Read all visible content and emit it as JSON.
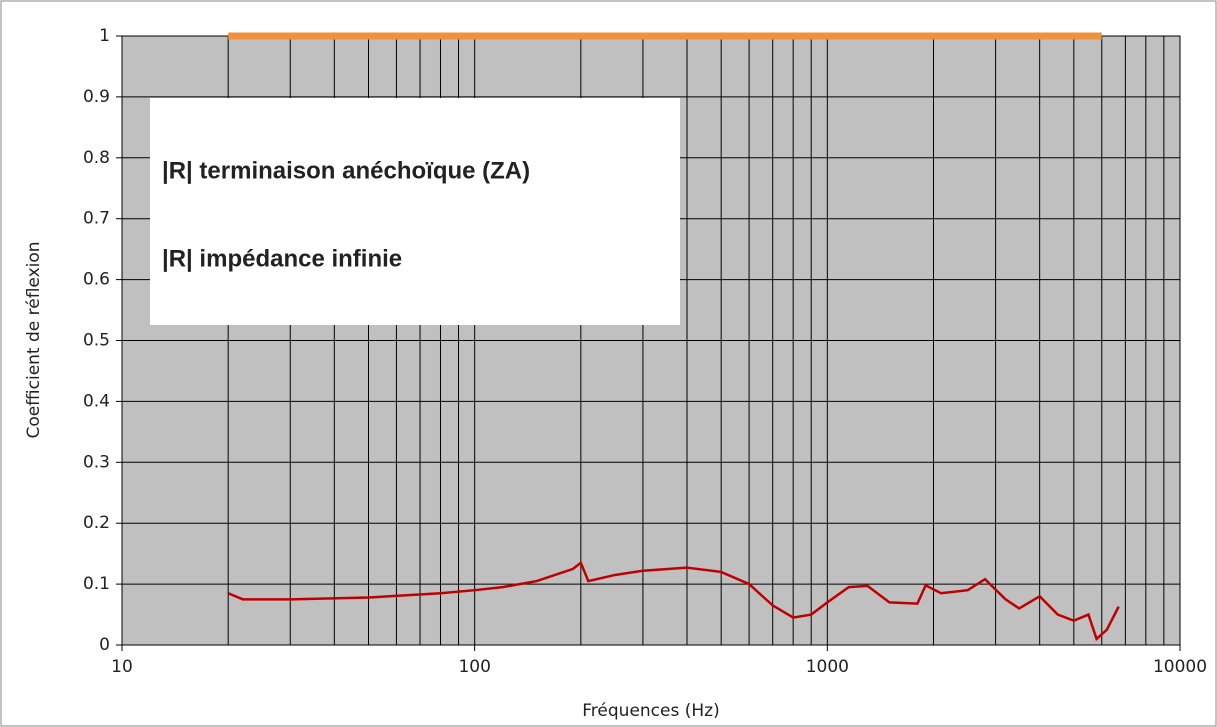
{
  "chart_data": {
    "type": "line",
    "xlabel": "Fréquences (Hz)",
    "ylabel": "Coefficient de réflexion",
    "xlim": [
      10,
      10000
    ],
    "xticks": [
      10,
      100,
      1000,
      10000
    ],
    "xscale": "log",
    "ylim": [
      0,
      1
    ],
    "yticks": [
      0,
      0.1,
      0.2,
      0.3,
      0.4,
      0.5,
      0.6,
      0.7,
      0.8,
      0.9,
      1
    ],
    "grid": true,
    "minor_grid": true,
    "legend": "upper left",
    "series": [
      {
        "name": "|R| terminaison anéchoïque (ZA)",
        "color": "#c00000",
        "x": [
          20,
          22,
          30,
          50,
          80,
          100,
          120,
          150,
          190,
          200,
          210,
          250,
          300,
          400,
          500,
          600,
          700,
          800,
          900,
          1000,
          1150,
          1300,
          1500,
          1800,
          1900,
          2100,
          2500,
          2800,
          3200,
          3500,
          4000,
          4500,
          5000,
          5500,
          5800,
          6200,
          6700
        ],
        "values": [
          0.085,
          0.075,
          0.075,
          0.078,
          0.085,
          0.09,
          0.095,
          0.105,
          0.125,
          0.135,
          0.105,
          0.115,
          0.122,
          0.127,
          0.12,
          0.1,
          0.065,
          0.045,
          0.05,
          0.07,
          0.095,
          0.097,
          0.07,
          0.068,
          0.098,
          0.085,
          0.09,
          0.108,
          0.075,
          0.06,
          0.08,
          0.05,
          0.04,
          0.05,
          0.01,
          0.025,
          0.063
        ]
      },
      {
        "name": "|R| impédance infinie",
        "color": "#f0923a",
        "x": [
          20,
          6000
        ],
        "values": [
          1,
          1
        ]
      }
    ]
  }
}
